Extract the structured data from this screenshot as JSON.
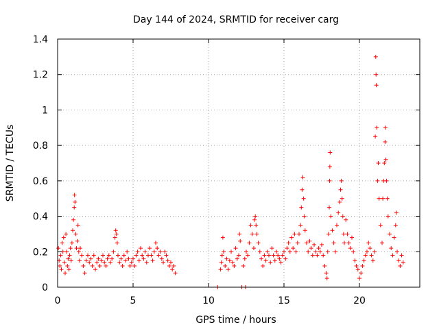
{
  "chart_data": {
    "type": "scatter",
    "title": "Day 144 of 2024, SRMTID for receiver carg",
    "xlabel": "GPS time / hours",
    "ylabel": "SRMTID / TECUs",
    "xlim": [
      0,
      24
    ],
    "ylim": [
      0,
      1.4
    ],
    "xticks": [
      0,
      5,
      10,
      15,
      20
    ],
    "xtick_labels": [
      "0",
      "5",
      "10",
      "15",
      "20"
    ],
    "yticks": [
      0,
      0.2,
      0.4,
      0.6,
      0.8,
      1.0,
      1.2,
      1.4
    ],
    "ytick_labels": [
      "0",
      "0.2",
      "0.4",
      "0.6",
      "0.8",
      "1",
      "1.2",
      "1.4"
    ],
    "grid": true,
    "marker": "+",
    "color": "#ff0000",
    "series": [
      {
        "name": "SRMTID",
        "points": [
          [
            0.05,
            0.22
          ],
          [
            0.1,
            0.15
          ],
          [
            0.15,
            0.12
          ],
          [
            0.2,
            0.18
          ],
          [
            0.25,
            0.1
          ],
          [
            0.3,
            0.25
          ],
          [
            0.35,
            0.2
          ],
          [
            0.4,
            0.28
          ],
          [
            0.45,
            0.14
          ],
          [
            0.5,
            0.08
          ],
          [
            0.55,
            0.3
          ],
          [
            0.6,
            0.2
          ],
          [
            0.65,
            0.12
          ],
          [
            0.7,
            0.16
          ],
          [
            0.75,
            0.1
          ],
          [
            0.8,
            0.18
          ],
          [
            0.85,
            0.22
          ],
          [
            0.9,
            0.15
          ],
          [
            0.95,
            0.25
          ],
          [
            1.0,
            0.32
          ],
          [
            1.05,
            0.38
          ],
          [
            1.1,
            0.45
          ],
          [
            1.12,
            0.52
          ],
          [
            1.15,
            0.48
          ],
          [
            1.2,
            0.3
          ],
          [
            1.25,
            0.22
          ],
          [
            1.3,
            0.26
          ],
          [
            1.35,
            0.35
          ],
          [
            1.4,
            0.2
          ],
          [
            1.45,
            0.15
          ],
          [
            1.5,
            0.22
          ],
          [
            1.6,
            0.18
          ],
          [
            1.7,
            0.12
          ],
          [
            1.8,
            0.08
          ],
          [
            1.9,
            0.15
          ],
          [
            2.0,
            0.18
          ],
          [
            2.1,
            0.14
          ],
          [
            2.2,
            0.16
          ],
          [
            2.3,
            0.12
          ],
          [
            2.4,
            0.18
          ],
          [
            2.5,
            0.1
          ],
          [
            2.6,
            0.14
          ],
          [
            2.7,
            0.16
          ],
          [
            2.8,
            0.12
          ],
          [
            2.9,
            0.15
          ],
          [
            3.0,
            0.18
          ],
          [
            3.1,
            0.14
          ],
          [
            3.2,
            0.12
          ],
          [
            3.3,
            0.16
          ],
          [
            3.4,
            0.18
          ],
          [
            3.5,
            0.14
          ],
          [
            3.6,
            0.16
          ],
          [
            3.7,
            0.2
          ],
          [
            3.8,
            0.28
          ],
          [
            3.85,
            0.32
          ],
          [
            3.9,
            0.3
          ],
          [
            3.95,
            0.25
          ],
          [
            4.0,
            0.18
          ],
          [
            4.1,
            0.14
          ],
          [
            4.2,
            0.16
          ],
          [
            4.3,
            0.12
          ],
          [
            4.4,
            0.18
          ],
          [
            4.5,
            0.15
          ],
          [
            4.6,
            0.2
          ],
          [
            4.7,
            0.16
          ],
          [
            4.8,
            0.12
          ],
          [
            4.9,
            0.14
          ],
          [
            5.0,
            0.16
          ],
          [
            5.1,
            0.12
          ],
          [
            5.2,
            0.18
          ],
          [
            5.3,
            0.2
          ],
          [
            5.4,
            0.15
          ],
          [
            5.5,
            0.22
          ],
          [
            5.6,
            0.18
          ],
          [
            5.7,
            0.16
          ],
          [
            5.8,
            0.2
          ],
          [
            5.9,
            0.14
          ],
          [
            6.0,
            0.18
          ],
          [
            6.1,
            0.22
          ],
          [
            6.2,
            0.18
          ],
          [
            6.3,
            0.15
          ],
          [
            6.4,
            0.2
          ],
          [
            6.5,
            0.25
          ],
          [
            6.6,
            0.22
          ],
          [
            6.7,
            0.18
          ],
          [
            6.8,
            0.2
          ],
          [
            6.9,
            0.16
          ],
          [
            7.0,
            0.14
          ],
          [
            7.1,
            0.2
          ],
          [
            7.2,
            0.18
          ],
          [
            7.3,
            0.15
          ],
          [
            7.4,
            0.12
          ],
          [
            7.5,
            0.14
          ],
          [
            7.6,
            0.1
          ],
          [
            7.7,
            0.12
          ],
          [
            7.8,
            0.08
          ],
          [
            10.6,
            0.0
          ],
          [
            10.8,
            0.1
          ],
          [
            10.85,
            0.14
          ],
          [
            10.9,
            0.18
          ],
          [
            10.95,
            0.28
          ],
          [
            11.0,
            0.2
          ],
          [
            11.1,
            0.12
          ],
          [
            11.2,
            0.16
          ],
          [
            11.3,
            0.1
          ],
          [
            11.4,
            0.15
          ],
          [
            11.5,
            0.2
          ],
          [
            11.6,
            0.14
          ],
          [
            11.7,
            0.12
          ],
          [
            11.8,
            0.22
          ],
          [
            11.9,
            0.16
          ],
          [
            12.0,
            0.18
          ],
          [
            12.05,
            0.3
          ],
          [
            12.1,
            0.26
          ],
          [
            12.2,
            0.0
          ],
          [
            12.3,
            0.12
          ],
          [
            12.4,
            0.16
          ],
          [
            12.45,
            0.0
          ],
          [
            12.5,
            0.2
          ],
          [
            12.6,
            0.18
          ],
          [
            12.7,
            0.25
          ],
          [
            12.8,
            0.35
          ],
          [
            12.9,
            0.3
          ],
          [
            13.0,
            0.22
          ],
          [
            13.05,
            0.38
          ],
          [
            13.1,
            0.4
          ],
          [
            13.15,
            0.35
          ],
          [
            13.2,
            0.3
          ],
          [
            13.3,
            0.25
          ],
          [
            13.4,
            0.2
          ],
          [
            13.5,
            0.16
          ],
          [
            13.6,
            0.12
          ],
          [
            13.7,
            0.18
          ],
          [
            13.8,
            0.15
          ],
          [
            13.9,
            0.2
          ],
          [
            14.0,
            0.18
          ],
          [
            14.1,
            0.14
          ],
          [
            14.2,
            0.22
          ],
          [
            14.3,
            0.18
          ],
          [
            14.4,
            0.15
          ],
          [
            14.5,
            0.2
          ],
          [
            14.6,
            0.18
          ],
          [
            14.7,
            0.16
          ],
          [
            14.8,
            0.14
          ],
          [
            14.9,
            0.18
          ],
          [
            15.0,
            0.2
          ],
          [
            15.1,
            0.16
          ],
          [
            15.2,
            0.22
          ],
          [
            15.3,
            0.25
          ],
          [
            15.4,
            0.2
          ],
          [
            15.5,
            0.28
          ],
          [
            15.6,
            0.22
          ],
          [
            15.7,
            0.3
          ],
          [
            15.8,
            0.2
          ],
          [
            15.9,
            0.25
          ],
          [
            16.0,
            0.3
          ],
          [
            16.1,
            0.35
          ],
          [
            16.15,
            0.45
          ],
          [
            16.2,
            0.55
          ],
          [
            16.25,
            0.62
          ],
          [
            16.3,
            0.5
          ],
          [
            16.35,
            0.4
          ],
          [
            16.4,
            0.32
          ],
          [
            16.5,
            0.25
          ],
          [
            16.6,
            0.2
          ],
          [
            16.7,
            0.26
          ],
          [
            16.8,
            0.22
          ],
          [
            16.9,
            0.18
          ],
          [
            17.0,
            0.24
          ],
          [
            17.1,
            0.2
          ],
          [
            17.2,
            0.18
          ],
          [
            17.3,
            0.22
          ],
          [
            17.4,
            0.2
          ],
          [
            17.5,
            0.24
          ],
          [
            17.6,
            0.18
          ],
          [
            17.7,
            0.12
          ],
          [
            17.8,
            0.08
          ],
          [
            17.85,
            0.05
          ],
          [
            17.9,
            0.2
          ],
          [
            17.95,
            0.3
          ],
          [
            18.0,
            0.45
          ],
          [
            18.02,
            0.6
          ],
          [
            18.04,
            0.68
          ],
          [
            18.06,
            0.76
          ],
          [
            18.1,
            0.4
          ],
          [
            18.2,
            0.32
          ],
          [
            18.3,
            0.25
          ],
          [
            18.4,
            0.2
          ],
          [
            18.5,
            0.35
          ],
          [
            18.6,
            0.42
          ],
          [
            18.7,
            0.48
          ],
          [
            18.75,
            0.55
          ],
          [
            18.8,
            0.6
          ],
          [
            18.85,
            0.5
          ],
          [
            18.9,
            0.4
          ],
          [
            18.95,
            0.3
          ],
          [
            19.0,
            0.25
          ],
          [
            19.1,
            0.38
          ],
          [
            19.2,
            0.3
          ],
          [
            19.3,
            0.25
          ],
          [
            19.4,
            0.22
          ],
          [
            19.5,
            0.28
          ],
          [
            19.6,
            0.2
          ],
          [
            19.7,
            0.15
          ],
          [
            19.8,
            0.12
          ],
          [
            19.9,
            0.1
          ],
          [
            20.0,
            0.05
          ],
          [
            20.1,
            0.08
          ],
          [
            20.2,
            0.12
          ],
          [
            20.3,
            0.15
          ],
          [
            20.4,
            0.18
          ],
          [
            20.5,
            0.2
          ],
          [
            20.6,
            0.25
          ],
          [
            20.7,
            0.22
          ],
          [
            20.8,
            0.18
          ],
          [
            20.9,
            0.15
          ],
          [
            21.0,
            0.2
          ],
          [
            21.05,
            0.85
          ],
          [
            21.08,
            1.3
          ],
          [
            21.1,
            1.2
          ],
          [
            21.12,
            1.14
          ],
          [
            21.15,
            0.9
          ],
          [
            21.2,
            0.6
          ],
          [
            21.25,
            0.7
          ],
          [
            21.3,
            0.5
          ],
          [
            21.4,
            0.35
          ],
          [
            21.5,
            0.25
          ],
          [
            21.55,
            0.5
          ],
          [
            21.6,
            0.6
          ],
          [
            21.65,
            0.7
          ],
          [
            21.7,
            0.82
          ],
          [
            21.72,
            0.9
          ],
          [
            21.75,
            0.72
          ],
          [
            21.8,
            0.6
          ],
          [
            21.85,
            0.5
          ],
          [
            21.9,
            0.4
          ],
          [
            22.0,
            0.3
          ],
          [
            22.1,
            0.22
          ],
          [
            22.2,
            0.18
          ],
          [
            22.3,
            0.28
          ],
          [
            22.4,
            0.35
          ],
          [
            22.45,
            0.42
          ],
          [
            22.5,
            0.2
          ],
          [
            22.6,
            0.15
          ],
          [
            22.7,
            0.12
          ],
          [
            22.8,
            0.18
          ],
          [
            22.9,
            0.14
          ]
        ]
      }
    ]
  }
}
